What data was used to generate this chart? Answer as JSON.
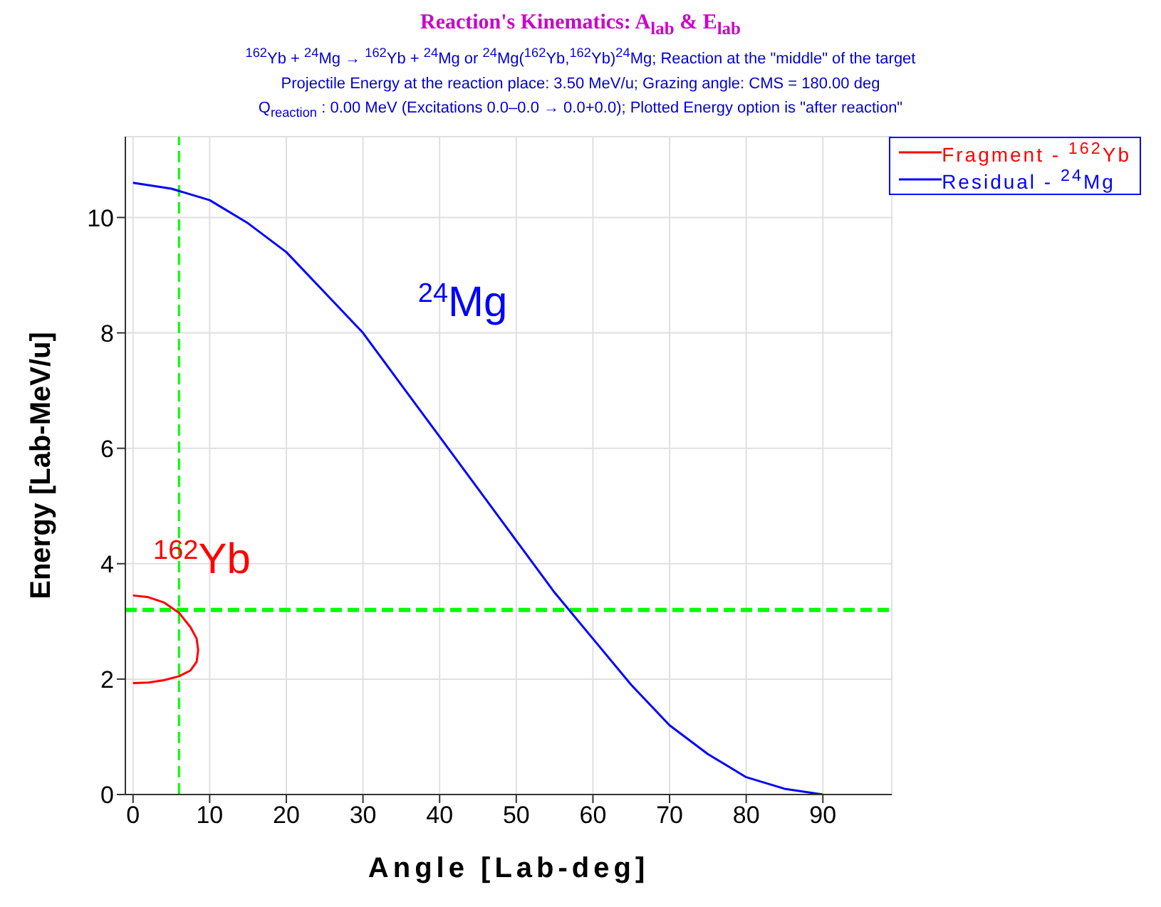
{
  "chart_data": {
    "type": "line",
    "title": "Reaction's Kinematics: A$_{lab}$ & E$_{lab}$",
    "subtitle": "$^{162}$Yb + $^{24}$Mg → $^{162}$Yb + $^{24}$Mg  or  $^{24}$Mg($^{162}$Yb,$^{162}$Yb)$^{24}$Mg;   Reaction at the \"middle\" of the target",
    "annotations": [
      "$^{162}$Yb",
      "$^{24}$Mg",
      "Projectile Energy at the reaction place: 3.50 MeV/u;   Grazing angle: CMS = 180.00 deg",
      "Q$_{reaction}$ : 0.00 MeV (Excitations 0.0–0.0 → 0.0+0.0);   Plotted Energy option is \"after reaction\""
    ],
    "xlabel": "Angle  [Lab-deg]",
    "ylabel": "Energy   [Lab-MeV/u]",
    "series": [
      {
        "name": "Fragment - $^{162}$Yb",
        "color": "#ff0000",
        "x": [
          0,
          2,
          4,
          6,
          7.5,
          8.3,
          8.5,
          8.3,
          7.5,
          6,
          4,
          2,
          0
        ],
        "values": [
          3.45,
          3.42,
          3.33,
          3.15,
          2.9,
          2.7,
          2.5,
          2.3,
          2.15,
          2.05,
          1.98,
          1.94,
          1.93
        ]
      },
      {
        "name": "Residual - $^{24}$Mg",
        "color": "#0000ff",
        "x": [
          0,
          5,
          10,
          15,
          20,
          25,
          30,
          35,
          40,
          45,
          50,
          55,
          60,
          65,
          70,
          75,
          80,
          85,
          90
        ],
        "values": [
          10.6,
          10.5,
          10.3,
          9.9,
          9.4,
          8.7,
          8.0,
          7.1,
          6.2,
          5.3,
          4.4,
          3.5,
          2.7,
          1.9,
          1.2,
          0.7,
          0.3,
          0.1,
          0
        ]
      }
    ],
    "xlim": [
      -1,
      99
    ],
    "xticks": [
      0,
      10,
      20,
      30,
      40,
      50,
      60,
      70,
      80,
      90
    ],
    "ylim": [
      0,
      11.4
    ],
    "yticks": [
      0,
      2,
      4,
      6,
      8,
      10
    ],
    "ref_lines": [
      {
        "axis": "x",
        "value": 6,
        "color": "#00ff00",
        "line_style": "dashed"
      },
      {
        "axis": "y",
        "value": 3.2,
        "color": "#00ff00",
        "line_style": "dashed"
      }
    ],
    "grid": true,
    "legend": "top right",
    "marker": "none",
    "line_style": "solid"
  }
}
